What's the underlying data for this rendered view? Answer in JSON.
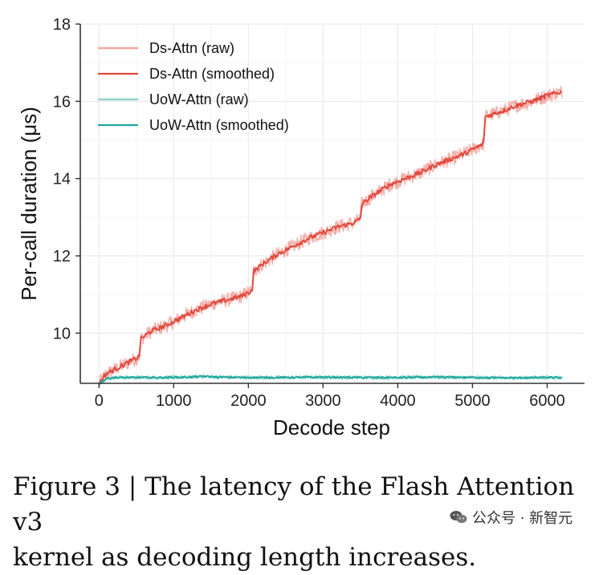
{
  "chart_data": {
    "type": "line",
    "xlabel": "Decode step",
    "ylabel": "Per-call duration (μs)",
    "xlim": [
      -250,
      6500
    ],
    "ylim": [
      8.7,
      18
    ],
    "xticks": [
      0,
      1000,
      2000,
      3000,
      4000,
      5000,
      6000
    ],
    "yticks": [
      10,
      12,
      14,
      16,
      18
    ],
    "grid": true,
    "legend_position": "top-left",
    "series": [
      {
        "name": "Ds-Attn (raw)",
        "color": "#f4a6a0",
        "style": "raw",
        "x": [
          0,
          100,
          200,
          300,
          400,
          500,
          540,
          560,
          700,
          900,
          1100,
          1300,
          1500,
          1700,
          1900,
          2050,
          2070,
          2200,
          2400,
          2600,
          2800,
          3000,
          3200,
          3400,
          3500,
          3520,
          3700,
          3900,
          4100,
          4300,
          4500,
          4700,
          4900,
          5100,
          5150,
          5170,
          5400,
          5600,
          5800,
          6000,
          6200
        ],
        "values": [
          8.7,
          8.95,
          9.05,
          9.15,
          9.25,
          9.35,
          9.4,
          9.85,
          10.05,
          10.2,
          10.4,
          10.6,
          10.75,
          10.85,
          10.95,
          11.1,
          11.6,
          11.8,
          12.05,
          12.25,
          12.45,
          12.6,
          12.75,
          12.85,
          12.95,
          13.35,
          13.6,
          13.85,
          14.0,
          14.15,
          14.35,
          14.5,
          14.65,
          14.85,
          14.9,
          15.6,
          15.75,
          15.9,
          16.0,
          16.15,
          16.25
        ]
      },
      {
        "name": "Ds-Attn (smoothed)",
        "color": "#e04a3f",
        "style": "smoothed",
        "x": [
          0,
          100,
          200,
          300,
          400,
          500,
          540,
          560,
          700,
          900,
          1100,
          1300,
          1500,
          1700,
          1900,
          2050,
          2070,
          2200,
          2400,
          2600,
          2800,
          3000,
          3200,
          3400,
          3500,
          3520,
          3700,
          3900,
          4100,
          4300,
          4500,
          4700,
          4900,
          5100,
          5150,
          5170,
          5400,
          5600,
          5800,
          6000,
          6200
        ],
        "values": [
          8.7,
          8.95,
          9.05,
          9.15,
          9.25,
          9.35,
          9.4,
          9.85,
          10.05,
          10.2,
          10.4,
          10.6,
          10.75,
          10.85,
          10.95,
          11.1,
          11.6,
          11.8,
          12.05,
          12.25,
          12.45,
          12.6,
          12.75,
          12.85,
          12.95,
          13.35,
          13.6,
          13.85,
          14.0,
          14.15,
          14.35,
          14.5,
          14.65,
          14.85,
          14.9,
          15.6,
          15.75,
          15.9,
          16.0,
          16.15,
          16.25
        ]
      },
      {
        "name": "UoW-Attn (raw)",
        "color": "#8ed3d0",
        "style": "raw",
        "x": [
          0,
          100,
          200,
          400,
          800,
          1200,
          1400,
          1600,
          2000,
          2500,
          3000,
          3500,
          4000,
          4500,
          5000,
          5500,
          6000,
          6200
        ],
        "values": [
          8.7,
          8.82,
          8.85,
          8.85,
          8.85,
          8.86,
          8.88,
          8.86,
          8.85,
          8.85,
          8.86,
          8.85,
          8.85,
          8.86,
          8.85,
          8.84,
          8.85,
          8.85
        ]
      },
      {
        "name": "UoW-Attn (smoothed)",
        "color": "#1fa89e",
        "style": "smoothed",
        "x": [
          0,
          100,
          200,
          400,
          800,
          1200,
          1400,
          1600,
          2000,
          2500,
          3000,
          3500,
          4000,
          4500,
          5000,
          5500,
          6000,
          6200
        ],
        "values": [
          8.7,
          8.82,
          8.85,
          8.85,
          8.85,
          8.86,
          8.88,
          8.86,
          8.85,
          8.85,
          8.86,
          8.85,
          8.85,
          8.86,
          8.85,
          8.84,
          8.85,
          8.85
        ]
      }
    ]
  },
  "caption": {
    "line1": "Figure 3 | The latency of the Flash Attention v3",
    "line2": "kernel as decoding length increases."
  },
  "watermark": {
    "icon": "wechat-icon",
    "text": "公众号 · 新智元"
  }
}
